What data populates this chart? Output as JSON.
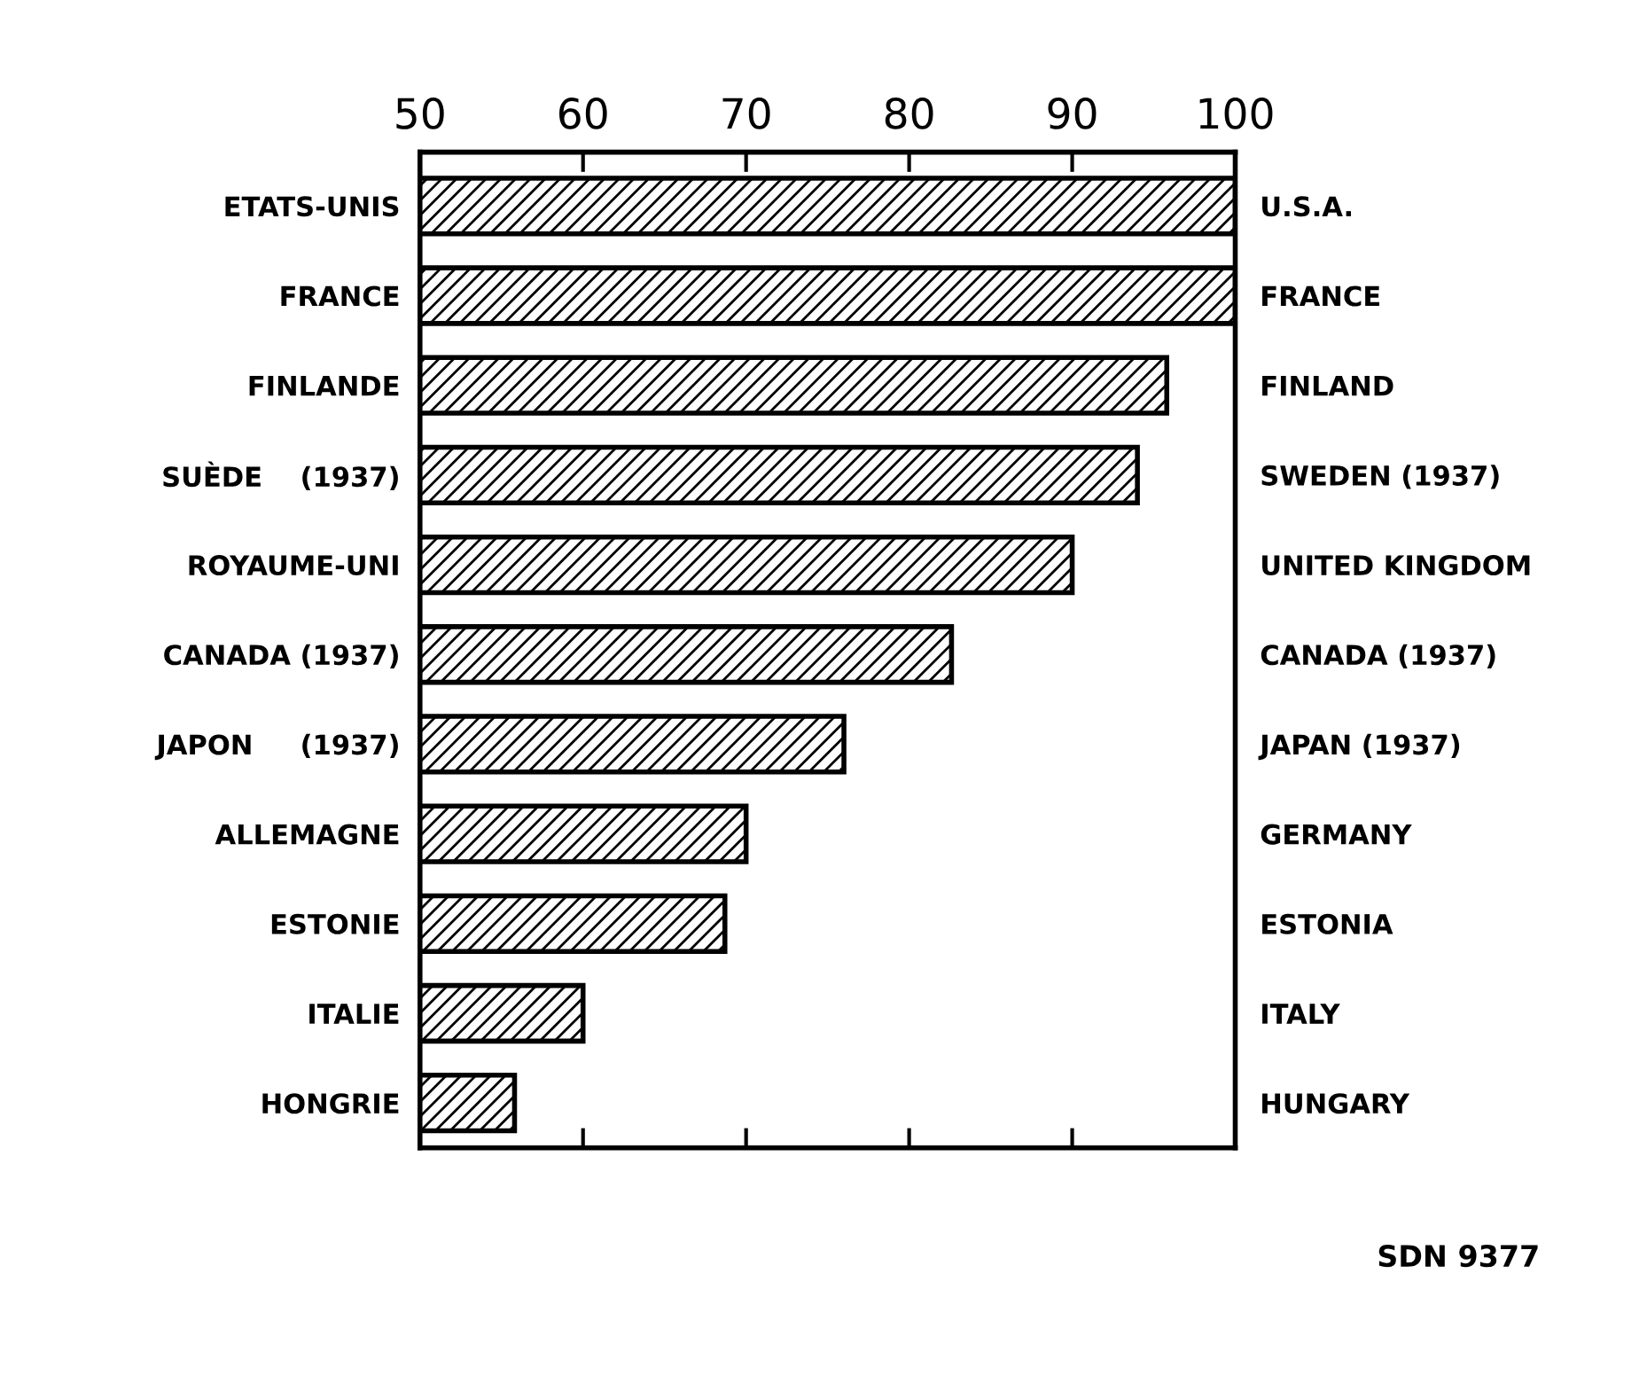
{
  "chart_data": {
    "type": "bar",
    "orientation": "horizontal",
    "categories": [
      "ETATS-UNIS",
      "FRANCE",
      "FINLANDE",
      "SUÈDE    (1937)",
      "ROYAUME-UNI",
      "CANADA (1937)",
      "JAPON     (1937)",
      "ALLEMAGNE",
      "ESTONIE",
      "ITALIE",
      "HONGRIE"
    ],
    "y2_categories": [
      "U.S.A.",
      "FRANCE",
      "FINLAND",
      "SWEDEN (1937)",
      "UNITED KINGDOM",
      "CANADA (1937)",
      "JAPAN (1937)",
      "GERMANY",
      "ESTONIA",
      "ITALY",
      "HUNGARY"
    ],
    "values": [
      100,
      100,
      95.8,
      94,
      90,
      82.6,
      76,
      70,
      68.7,
      60,
      55.8
    ],
    "color": "#000000",
    "xlim": [
      50,
      100
    ],
    "xticks": [
      50,
      60,
      70,
      80,
      90,
      100
    ],
    "grid": false,
    "annotations": [
      "SDN 9377"
    ]
  }
}
